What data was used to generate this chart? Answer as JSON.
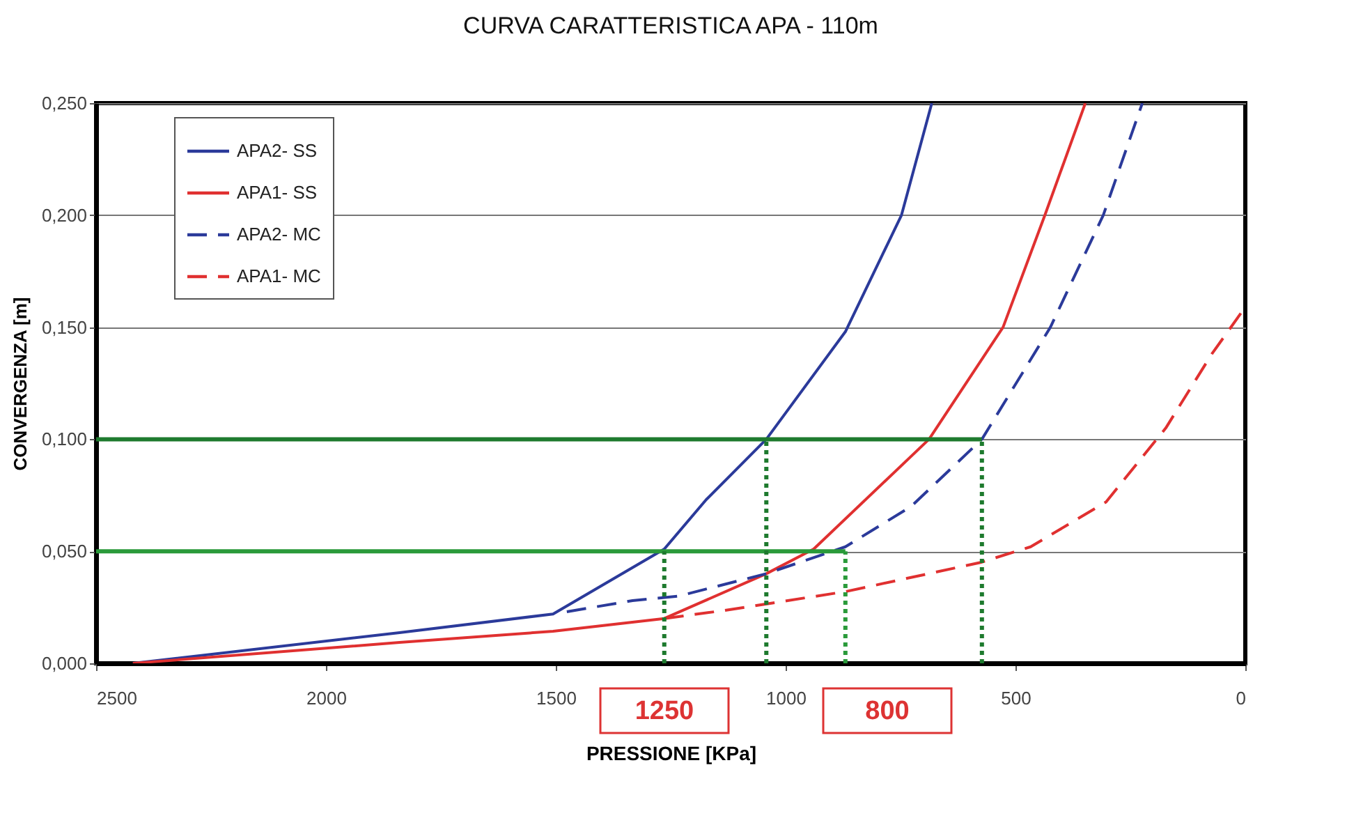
{
  "chart_data": {
    "type": "line",
    "title": "CURVA CARATTERISTICA APA - 110m",
    "xlabel": "PRESSIONE [KPa]",
    "ylabel": "CONVERGENZA  [m]",
    "xlim": [
      2500,
      0
    ],
    "xticks": [
      2500,
      2000,
      1500,
      1000,
      500,
      0
    ],
    "ylim": [
      0,
      0.25
    ],
    "yticks": [
      {
        "value": 0,
        "label": "0,000"
      },
      {
        "value": 0.05,
        "label": "0,050"
      },
      {
        "value": 0.1,
        "label": "0,100"
      },
      {
        "value": 0.15,
        "label": "0,150"
      },
      {
        "value": 0.2,
        "label": "0,200"
      },
      {
        "value": 0.25,
        "label": "0,250"
      }
    ],
    "grid": "y",
    "legend": "top left",
    "marker": "none",
    "series": [
      {
        "name": "APA2- SS",
        "color": "#2b3a9a",
        "line_style": "solid",
        "x": [
          2420,
          1840,
          1506,
          1264,
          1173,
          1042,
          870,
          748,
          682
        ],
        "values": [
          0,
          0.0137,
          0.022,
          0.051,
          0.073,
          0.1,
          0.148,
          0.2,
          0.25
        ]
      },
      {
        "name": "APA1- SS",
        "color": "#e03030",
        "line_style": "solid",
        "x": [
          2420,
          1840,
          1506,
          1264,
          1042,
          939,
          688,
          527,
          436,
          348
        ],
        "values": [
          0,
          0.0093,
          0.0143,
          0.02,
          0.04,
          0.051,
          0.1,
          0.15,
          0.2,
          0.25
        ]
      },
      {
        "name": "APA2- MC",
        "color": "#2b3a9a",
        "line_style": "dashed",
        "x": [
          1476,
          1333,
          1233,
          1042,
          870,
          727,
          573,
          424,
          309,
          224
        ],
        "values": [
          0.023,
          0.028,
          0.03,
          0.04,
          0.052,
          0.07,
          0.1,
          0.15,
          0.2,
          0.25
        ]
      },
      {
        "name": "APA1- MC",
        "color": "#e03030",
        "line_style": "dashed",
        "x": [
          1264,
          1133,
          870,
          576,
          467,
          303,
          173,
          73,
          0
        ],
        "values": [
          0.02,
          0.0236,
          0.032,
          0.045,
          0.052,
          0.072,
          0.105,
          0.138,
          0.159
        ]
      },
      {
        "color": "#1e7a2e",
        "line_style": "solid",
        "x": [
          2500,
          573
        ],
        "values": [
          0.1,
          0.1
        ]
      },
      {
        "color": "#2a9a3a",
        "line_style": "solid",
        "x": [
          2500,
          870
        ],
        "values": [
          0.05,
          0.05
        ]
      },
      {
        "color": "#1e7a2e",
        "line_style": "dotted",
        "x": [
          1264,
          1264
        ],
        "values": [
          0,
          0.05
        ]
      },
      {
        "color": "#1e7a2e",
        "line_style": "dotted",
        "x": [
          1042,
          1042
        ],
        "values": [
          0,
          0.1
        ]
      },
      {
        "color": "#2a9a3a",
        "line_style": "dotted",
        "x": [
          870,
          870
        ],
        "values": [
          0,
          0.05
        ]
      },
      {
        "color": "#1e7a2e",
        "line_style": "dotted",
        "x": [
          573,
          573
        ],
        "values": [
          0,
          0.1
        ]
      }
    ],
    "annotations": [
      "1250",
      "800"
    ]
  }
}
